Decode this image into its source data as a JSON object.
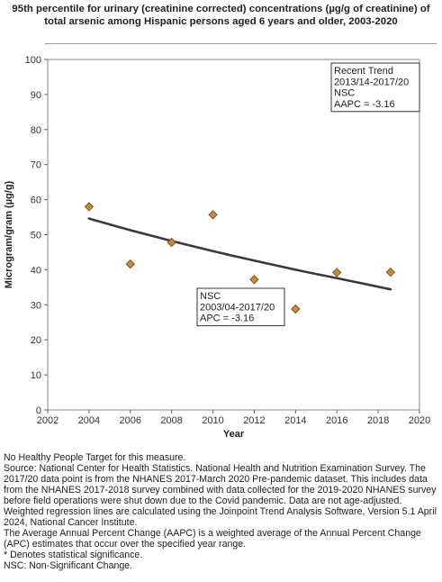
{
  "title": "95th percentile for urinary (creatinine corrected) concentrations (µg/g of creatinine) of total arsenic among Hispanic persons aged 6 years and older, 2003-2020",
  "chart_data": {
    "type": "scatter",
    "xlabel": "Year",
    "ylabel": "Microgram/gram (µg/g)",
    "xlim": [
      2002,
      2020
    ],
    "ylim": [
      0,
      100
    ],
    "x_ticks": [
      "2002",
      "2004",
      "2006",
      "2008",
      "2010",
      "2012",
      "2014",
      "2016",
      "2018",
      "2020"
    ],
    "y_ticks": [
      "0",
      "10",
      "20",
      "30",
      "40",
      "50",
      "60",
      "70",
      "80",
      "90",
      "100"
    ],
    "grid": false,
    "points": [
      {
        "x": 2004,
        "y": 58.0
      },
      {
        "x": 2006,
        "y": 41.6
      },
      {
        "x": 2008,
        "y": 47.8
      },
      {
        "x": 2010,
        "y": 55.7
      },
      {
        "x": 2012,
        "y": 37.2
      },
      {
        "x": 2014,
        "y": 28.8
      },
      {
        "x": 2016,
        "y": 39.2
      },
      {
        "x": 2018.6,
        "y": 39.3
      }
    ],
    "trend_line": [
      {
        "x": 2004,
        "y": 54.6
      },
      {
        "x": 2006,
        "y": 51.3
      },
      {
        "x": 2008,
        "y": 48.2
      },
      {
        "x": 2010,
        "y": 45.3
      },
      {
        "x": 2012,
        "y": 42.6
      },
      {
        "x": 2014,
        "y": 40.0
      },
      {
        "x": 2016,
        "y": 37.6
      },
      {
        "x": 2018.6,
        "y": 34.4
      }
    ],
    "marker_color": "#c8893f",
    "marker_edge": "#6b4419",
    "line_color": "#3a3a3a",
    "annotations": [
      {
        "id": "recent",
        "lines": [
          "Recent Trend",
          "2013/14-2017/20",
          "NSC",
          "AAPC = -3.16"
        ]
      },
      {
        "id": "overall",
        "lines": [
          "NSC",
          "2003/04-2017/20",
          "APC = -3.16"
        ]
      }
    ]
  },
  "notes": [
    "No Healthy People Target for this measure.",
    "Source: National Center for Health Statistics. National Health and Nutrition Examination Survey. The 2017/20 data point is from the NHANES 2017-March 2020 Pre-pandemic dataset. This includes data from the NHANES 2017-2018 survey combined with data collected for the 2019-2020 NHANES survey before field operations were shut down due to the Covid pandemic. Data are not age-adjusted.",
    "Weighted regression lines are calculated using the Joinpoint Trend Analysis Software, Version 5.1 April 2024, National Cancer Institute.",
    "The Average Annual Percent Change (AAPC) is a weighted average of the Annual Percent Change (APC) estimates that occur over the specified year range.",
    "* Denotes statistical significance.",
    "NSC: Non-Significant Change."
  ]
}
